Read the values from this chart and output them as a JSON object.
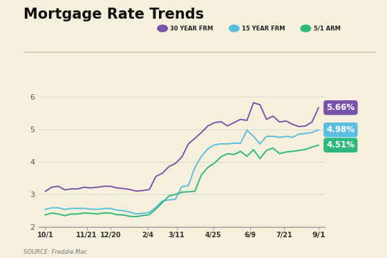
{
  "title": "Mortgage Rate Trends",
  "background_color": "#f5f0dc",
  "source_text": "SOURCE: Freddie Mac",
  "x_labels": [
    "10/1",
    "11/21",
    "12/20",
    "2/4",
    "3/11",
    "4/25",
    "6/9",
    "7/21",
    "9/1"
  ],
  "y_ticks": [
    2,
    3,
    4,
    5,
    6
  ],
  "ylim": [
    2.0,
    6.35
  ],
  "legend_entries": [
    "30 YEAR FRM",
    "15 YEAR FRM",
    "5/1 ARM"
  ],
  "legend_colors": [
    "#7B52AB",
    "#5BBDE0",
    "#2DB87D"
  ],
  "line_colors": [
    "#7B52AB",
    "#5BBDE0",
    "#2DB87D"
  ],
  "end_labels": [
    "5.66%",
    "4.98%",
    "4.51%"
  ],
  "end_label_colors": [
    "#7B52AB",
    "#5BBDE0",
    "#2DB87D"
  ],
  "series_30yr": [
    3.09,
    3.22,
    3.25,
    3.14,
    3.17,
    3.17,
    3.22,
    3.2,
    3.22,
    3.25,
    3.25,
    3.2,
    3.18,
    3.15,
    3.1,
    3.12,
    3.15,
    3.55,
    3.65,
    3.85,
    3.95,
    4.15,
    4.55,
    4.72,
    4.9,
    5.1,
    5.2,
    5.23,
    5.1,
    5.2,
    5.3,
    5.27,
    5.81,
    5.75,
    5.3,
    5.4,
    5.22,
    5.25,
    5.15,
    5.08,
    5.1,
    5.22,
    5.66
  ],
  "series_15yr": [
    2.54,
    2.59,
    2.59,
    2.54,
    2.57,
    2.57,
    2.57,
    2.55,
    2.54,
    2.57,
    2.57,
    2.52,
    2.5,
    2.46,
    2.4,
    2.42,
    2.45,
    2.6,
    2.8,
    2.83,
    2.85,
    3.24,
    3.27,
    3.83,
    4.17,
    4.4,
    4.52,
    4.55,
    4.55,
    4.57,
    4.57,
    4.97,
    4.78,
    4.55,
    4.78,
    4.78,
    4.75,
    4.78,
    4.75,
    4.85,
    4.87,
    4.9,
    4.98
  ],
  "series_51arm": [
    2.37,
    2.43,
    2.4,
    2.35,
    2.4,
    2.4,
    2.43,
    2.42,
    2.4,
    2.43,
    2.43,
    2.38,
    2.37,
    2.33,
    2.32,
    2.35,
    2.38,
    2.55,
    2.75,
    2.95,
    3.0,
    3.07,
    3.08,
    3.1,
    3.6,
    3.83,
    3.96,
    4.15,
    4.25,
    4.22,
    4.32,
    4.17,
    4.37,
    4.1,
    4.35,
    4.42,
    4.25,
    4.3,
    4.32,
    4.35,
    4.38,
    4.45,
    4.51
  ]
}
